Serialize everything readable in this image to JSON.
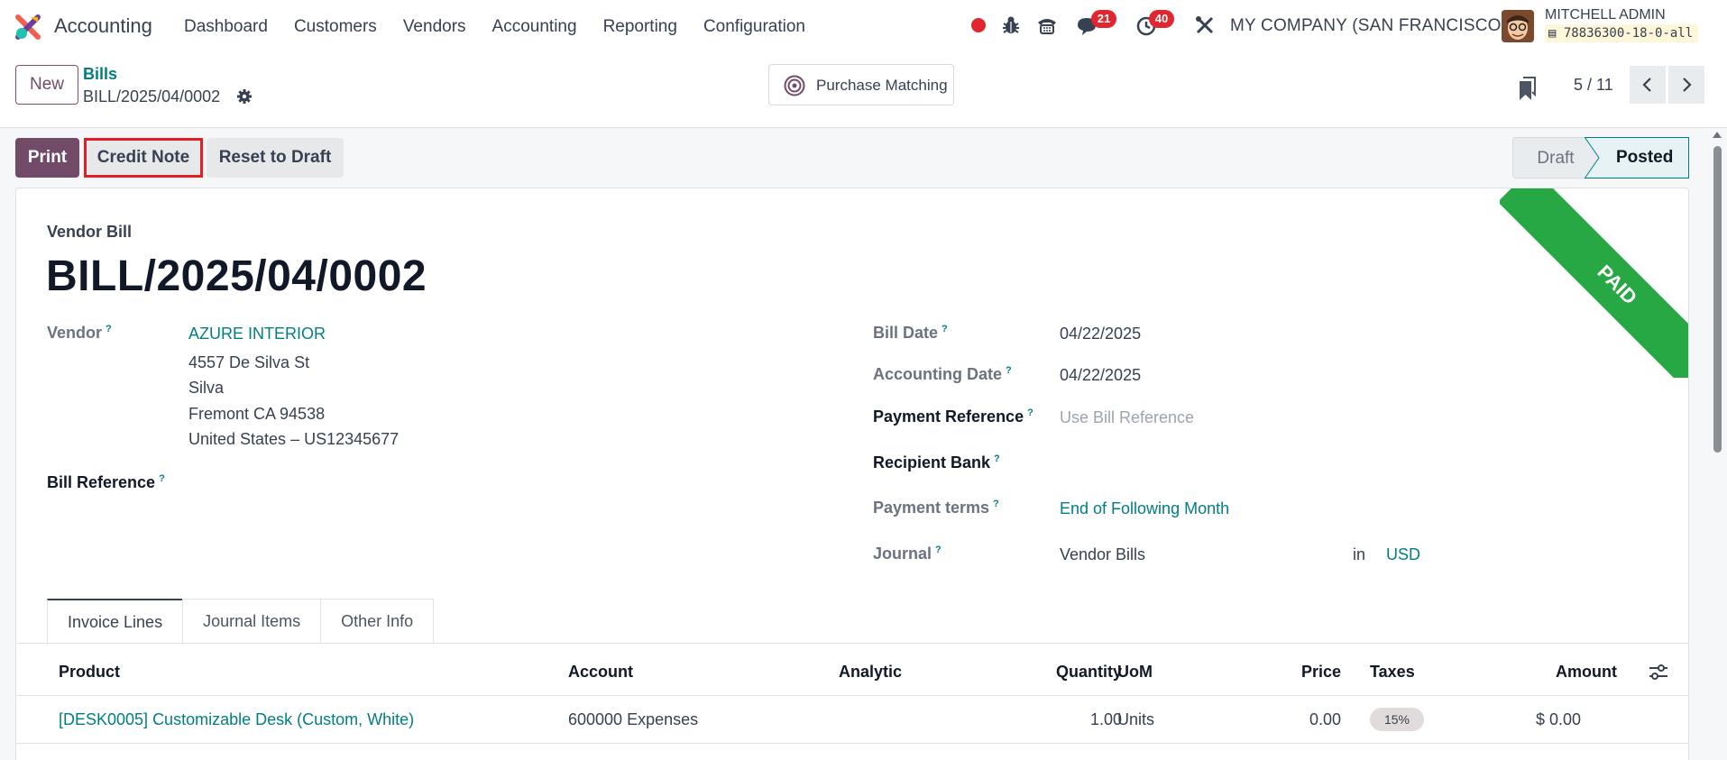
{
  "app": {
    "name": "Accounting"
  },
  "menu": [
    "Dashboard",
    "Customers",
    "Vendors",
    "Accounting",
    "Reporting",
    "Configuration"
  ],
  "systray": {
    "messages_count": "21",
    "activities_count": "40",
    "company": "MY COMPANY (SAN FRANCISCO)",
    "user_name": "MITCHELL ADMIN",
    "database": "78836300-18-0-all"
  },
  "control": {
    "new_label": "New",
    "breadcrumb_parent": "Bills",
    "breadcrumb_current": "BILL/2025/04/0002",
    "purchase_matching_label": "Purchase Matching",
    "pager": "5 / 11"
  },
  "actions": {
    "print": "Print",
    "credit_note": "Credit Note",
    "reset_to_draft": "Reset to Draft"
  },
  "statusbar": {
    "draft": "Draft",
    "posted": "Posted",
    "active": "Posted"
  },
  "ribbon": {
    "text": "PAID",
    "color": "#28a745"
  },
  "form": {
    "doc_type": "Vendor Bill",
    "name": "BILL/2025/04/0002",
    "vendor_label": "Vendor",
    "vendor_name": "AZURE INTERIOR",
    "vendor_address": [
      "4557 De Silva St",
      "Silva",
      "Fremont CA 94538",
      "United States – US12345677"
    ],
    "bill_reference_label": "Bill Reference",
    "bill_date_label": "Bill Date",
    "bill_date": "04/22/2025",
    "accounting_date_label": "Accounting Date",
    "accounting_date": "04/22/2025",
    "payment_reference_label": "Payment Reference",
    "payment_reference_placeholder": "Use Bill Reference",
    "recipient_bank_label": "Recipient Bank",
    "payment_terms_label": "Payment terms",
    "payment_terms": "End of Following Month",
    "journal_label": "Journal",
    "journal": "Vendor Bills",
    "journal_in": "in",
    "currency": "USD",
    "help_mark": "?"
  },
  "tabs": [
    {
      "label": "Invoice Lines",
      "active": true
    },
    {
      "label": "Journal Items",
      "active": false
    },
    {
      "label": "Other Info",
      "active": false
    }
  ],
  "lines": {
    "headers": {
      "product": "Product",
      "account": "Account",
      "analytic": "Analytic",
      "quantity": "Quantity",
      "uom": "UoM",
      "price": "Price",
      "taxes": "Taxes",
      "amount": "Amount"
    },
    "rows": [
      {
        "product": "[DESK0005] Customizable Desk (Custom, White)",
        "account": "600000 Expenses",
        "analytic": "",
        "quantity": "1.00",
        "uom": "Units",
        "price": "0.00",
        "taxes": "15%",
        "amount": "$ 0.00"
      }
    ]
  },
  "colors": {
    "brand": "#714b67",
    "link": "#017e84",
    "badge": "#e0262f",
    "highlight": "#e41e26"
  }
}
